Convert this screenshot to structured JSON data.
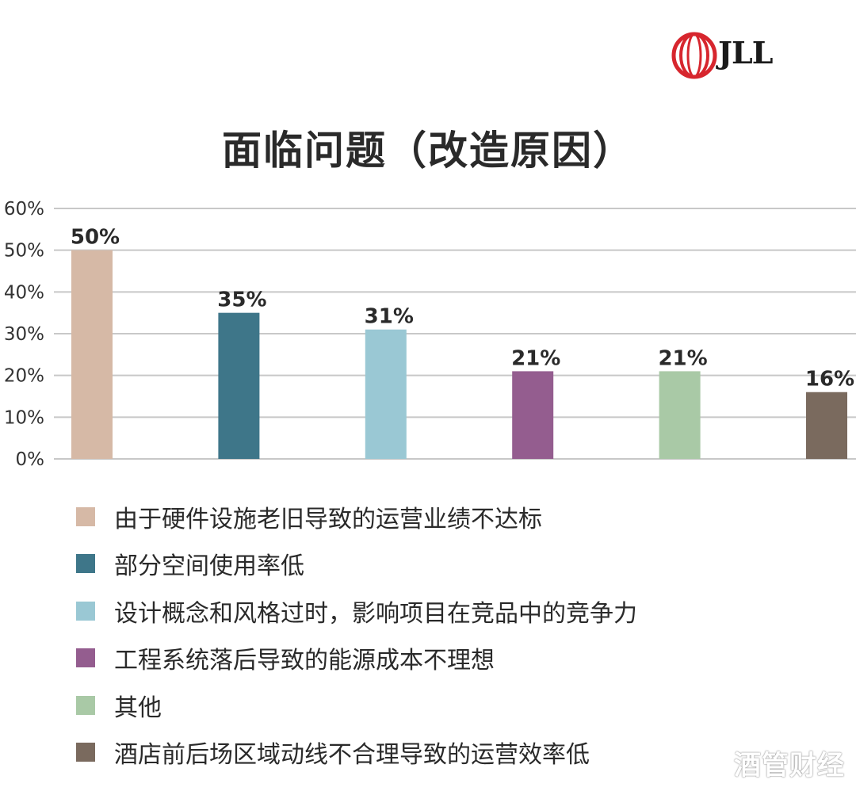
{
  "logo": {
    "text": "JLL",
    "accent": "#d7262e"
  },
  "watermark": "酒管财经",
  "chart_data": {
    "type": "bar",
    "title": "面临问题（改造原因）",
    "categories": [
      "由于硬件设施老旧导致的运营业绩不达标",
      "部分空间使用率低",
      "设计概念和风格过时，影响项目在竞品中的竞争力",
      "工程系统落后导致的能源成本不理想",
      "其他",
      "酒店前后场区域动线不合理导致的运营效率低"
    ],
    "values": [
      50,
      35,
      31,
      21,
      21,
      16
    ],
    "data_labels": [
      "50%",
      "35%",
      "31%",
      "21%",
      "21%",
      "16%"
    ],
    "colors": [
      "#d6b9a6",
      "#3e7689",
      "#9ac8d4",
      "#945d8f",
      "#a9c9a6",
      "#7a6a5e"
    ],
    "ylim": [
      0,
      60
    ],
    "yticks": [
      0,
      10,
      20,
      30,
      40,
      50,
      60
    ],
    "ytick_labels": [
      "0%",
      "10%",
      "20%",
      "30%",
      "40%",
      "50%",
      "60%"
    ],
    "grid": true,
    "legend": "bottom",
    "xlabel": "",
    "ylabel": ""
  }
}
